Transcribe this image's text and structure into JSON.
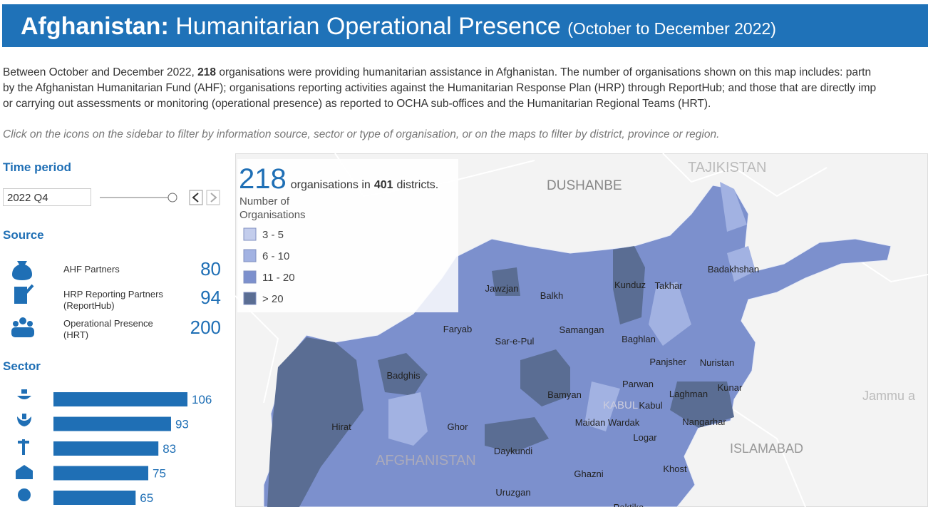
{
  "header": {
    "title_bold": "Afghanistan:",
    "title": "Humanitarian Operational Presence",
    "period": "(October to December 2022)"
  },
  "intro": {
    "line1_start": "Between October and December 2022,",
    "line1_count": 218,
    "line1_end": "organisations were providing humanitarian assistance in Afghanistan. The number of organisations shown on this map includes: partn",
    "line2": "by the Afghanistan Humanitarian Fund (AHF); organisations reporting activities against the Humanitarian Response Plan (HRP) through ReportHub; and those that are directly imp",
    "line3": "or carrying out assessments or monitoring (operational presence) as reported to OCHA sub-offices and the Humanitarian Regional Teams (HRT).",
    "hint": "Click on the icons on the sidebar to filter by information source, sector or type of organisation, or on the maps to filter by district, province or region."
  },
  "sidebar": {
    "time_heading": "Time period",
    "time_value": "2022 Q4",
    "source_heading": "Source",
    "sources": [
      {
        "label": "AHF Partners",
        "count": 80
      },
      {
        "label": "HRP Reporting Partners (ReportHub)",
        "count": 94
      },
      {
        "label": "Operational Presence (HRT)",
        "count": 200
      }
    ],
    "sector_heading": "Sector",
    "sectors": {
      "values": [
        106,
        93,
        83,
        75,
        65
      ],
      "color": "#1f6fb5"
    }
  },
  "map": {
    "total": 218,
    "total_text": "organisations in",
    "districts": 401,
    "districts_text": "districts.",
    "legend_title": "Number of Organisations",
    "legend": [
      {
        "label": "3 - 5",
        "color": "#c3cdec"
      },
      {
        "label": "6 - 10",
        "color": "#a2b2e2"
      },
      {
        "label": "11 - 20",
        "color": "#7c90cd"
      },
      {
        "label": "> 20",
        "color": "#5a6d93"
      }
    ],
    "places": [
      "DUSHANBE",
      "TAJIKISTAN",
      "ISLAMABAD",
      "Jammu a",
      "AFGHANISTAN",
      "KABUL"
    ],
    "provinces": [
      "Jawzjan",
      "Balkh",
      "Kunduz",
      "Takhar",
      "Badakhshan",
      "Faryab",
      "Sar-e-Pul",
      "Samangan",
      "Baghlan",
      "Panjsher",
      "Nuristan",
      "Badghis",
      "Bamyan",
      "Parwan",
      "Kunar",
      "Laghman",
      "Kabul",
      "Hirat",
      "Ghor",
      "Maidan Wardak",
      "Nangarhar",
      "Logar",
      "Daykundi",
      "Khost",
      "Ghazni",
      "Uruzgan",
      "Paktika"
    ]
  }
}
